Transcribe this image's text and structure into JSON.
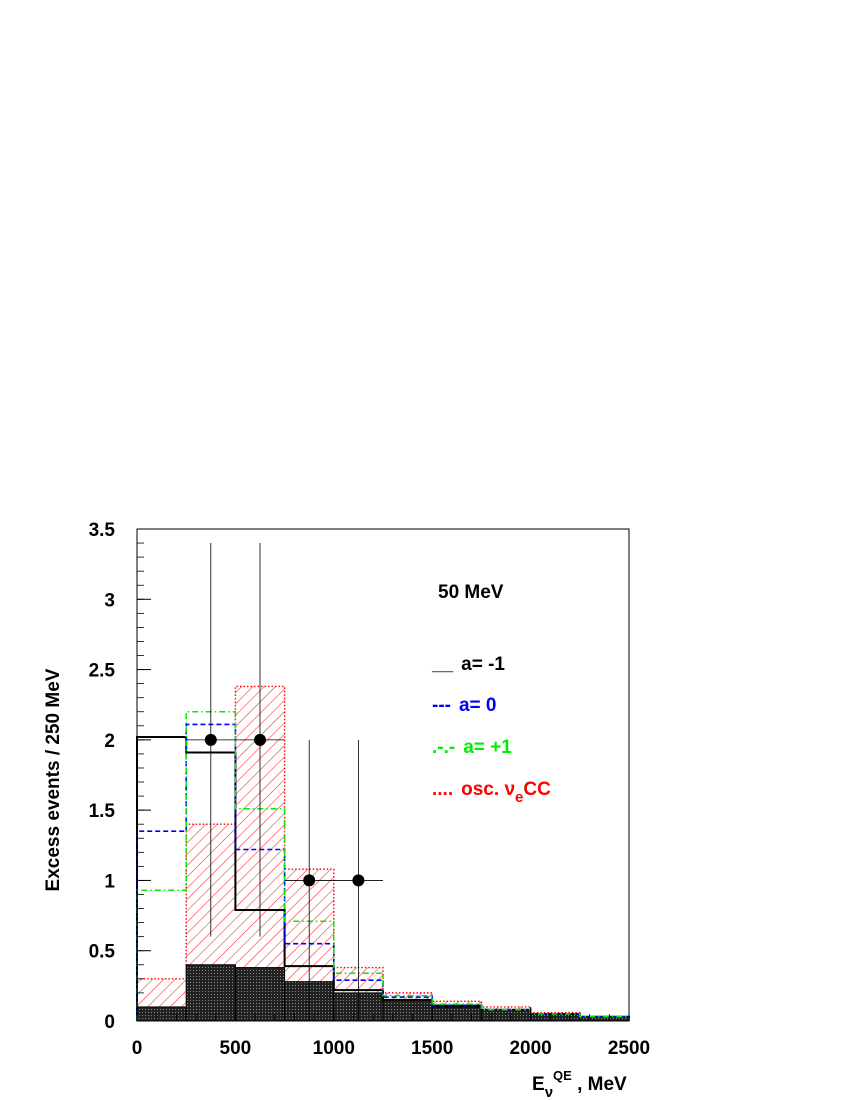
{
  "chart_data": {
    "type": "histogram",
    "xlabel_main": "E",
    "xlabel_sub": "ν",
    "xlabel_sup": "QE",
    "xlabel_unit": " , MeV",
    "ylabel": "Excess events / 250 MeV",
    "xlim": [
      0,
      2500
    ],
    "ylim": [
      0,
      3.5
    ],
    "x_ticks": [
      "0",
      "500",
      "1000",
      "1500",
      "2000",
      "2500"
    ],
    "y_ticks": [
      "0",
      "0.5",
      "1",
      "1.5",
      "2",
      "2.5",
      "3",
      "3.5"
    ],
    "bin_edges": [
      0,
      250,
      500,
      750,
      1000,
      1250,
      1500,
      1750,
      2000,
      2250,
      2500
    ],
    "annotation": "50 MeV",
    "series": [
      {
        "name": "a= -1",
        "legend_marker": "__",
        "style": "solid",
        "color": "#000000",
        "values": [
          2.02,
          1.91,
          0.79,
          0.39,
          0.22,
          0.15,
          0.11,
          0.08,
          0.05,
          0.03
        ]
      },
      {
        "name": "a= 0",
        "legend_marker": "---",
        "style": "dashed",
        "color": "#0000ff",
        "values": [
          1.35,
          2.11,
          1.22,
          0.55,
          0.29,
          0.17,
          0.11,
          0.08,
          0.05,
          0.03
        ]
      },
      {
        "name": "a= +1",
        "legend_marker": ".-.-",
        "style": "dashdot",
        "color": "#00ee00",
        "values": [
          0.93,
          2.2,
          1.51,
          0.71,
          0.34,
          0.18,
          0.12,
          0.08,
          0.05,
          0.03
        ]
      },
      {
        "name": "osc. ",
        "name_nu": "ν",
        "name_sub": "e",
        "name_suffix": "CC",
        "legend_marker": "....",
        "style": "dotted-hatched",
        "color": "#ff0000",
        "values": [
          0.3,
          1.4,
          2.38,
          1.08,
          0.38,
          0.2,
          0.14,
          0.1,
          0.06,
          0.03
        ]
      }
    ],
    "background": {
      "fill": "#333333",
      "values": [
        0.1,
        0.4,
        0.38,
        0.28,
        0.2,
        0.15,
        0.1,
        0.08,
        0.05,
        0.03
      ]
    },
    "data_points": [
      {
        "x": 375,
        "y": 2,
        "xerr": 125,
        "ylow": 0.6,
        "yhigh": 3.4
      },
      {
        "x": 625,
        "y": 2,
        "xerr": 125,
        "ylow": 0.6,
        "yhigh": 3.4
      },
      {
        "x": 875,
        "y": 1,
        "xerr": 125,
        "ylow": 0,
        "yhigh": 2
      },
      {
        "x": 1125,
        "y": 1,
        "xerr": 125,
        "ylow": 0,
        "yhigh": 2
      }
    ]
  }
}
